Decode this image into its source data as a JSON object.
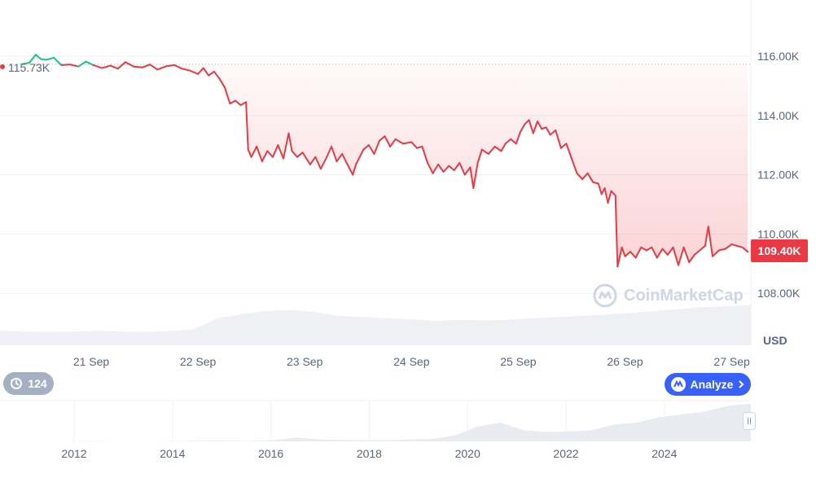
{
  "chart_data": {
    "type": "line",
    "currency_label": "USD",
    "watermark": "CoinMarketCap",
    "start_price_label": "115.73K",
    "current_price_label": "109.40K",
    "reference_value": 115730,
    "ylim": [
      107000,
      117500
    ],
    "y_ticks": [
      {
        "value": 108000,
        "label": "108.00K"
      },
      {
        "value": 110000,
        "label": "110.00K"
      },
      {
        "value": 112000,
        "label": "112.00K"
      },
      {
        "value": 114000,
        "label": "114.00K"
      },
      {
        "value": 116000,
        "label": "116.00K"
      }
    ],
    "x_ticks": [
      "21 Sep",
      "22 Sep",
      "23 Sep",
      "24 Sep",
      "25 Sep",
      "26 Sep",
      "27 Sep"
    ],
    "x_range_days": [
      20.35,
      27.15
    ],
    "series": [
      {
        "points": [
          [
            20.35,
            115.73
          ],
          [
            20.42,
            115.78
          ],
          [
            20.48,
            116.05
          ],
          [
            20.53,
            115.9
          ],
          [
            20.58,
            115.88
          ],
          [
            20.65,
            115.95
          ],
          [
            20.72,
            115.7
          ],
          [
            20.8,
            115.72
          ],
          [
            20.88,
            115.65
          ],
          [
            20.95,
            115.82
          ],
          [
            21.02,
            115.7
          ],
          [
            21.1,
            115.6
          ],
          [
            21.18,
            115.68
          ],
          [
            21.25,
            115.58
          ],
          [
            21.32,
            115.8
          ],
          [
            21.4,
            115.65
          ],
          [
            21.48,
            115.62
          ],
          [
            21.55,
            115.72
          ],
          [
            21.62,
            115.55
          ],
          [
            21.7,
            115.66
          ],
          [
            21.78,
            115.7
          ],
          [
            21.85,
            115.58
          ],
          [
            21.92,
            115.52
          ],
          [
            22.0,
            115.4
          ],
          [
            22.05,
            115.6
          ],
          [
            22.1,
            115.35
          ],
          [
            22.15,
            115.48
          ],
          [
            22.2,
            115.25
          ],
          [
            22.25,
            114.95
          ],
          [
            22.3,
            114.4
          ],
          [
            22.35,
            114.5
          ],
          [
            22.4,
            114.35
          ],
          [
            22.45,
            114.45
          ],
          [
            22.47,
            112.85
          ],
          [
            22.5,
            112.6
          ],
          [
            22.55,
            112.95
          ],
          [
            22.6,
            112.45
          ],
          [
            22.65,
            112.8
          ],
          [
            22.7,
            112.6
          ],
          [
            22.75,
            113.0
          ],
          [
            22.8,
            112.55
          ],
          [
            22.85,
            113.4
          ],
          [
            22.88,
            112.8
          ],
          [
            22.93,
            112.6
          ],
          [
            22.98,
            112.75
          ],
          [
            23.05,
            112.35
          ],
          [
            23.1,
            112.6
          ],
          [
            23.15,
            112.2
          ],
          [
            23.2,
            112.55
          ],
          [
            23.25,
            112.95
          ],
          [
            23.3,
            112.45
          ],
          [
            23.35,
            112.7
          ],
          [
            23.4,
            112.35
          ],
          [
            23.45,
            112.0
          ],
          [
            23.48,
            112.35
          ],
          [
            23.55,
            112.85
          ],
          [
            23.6,
            113.0
          ],
          [
            23.65,
            112.7
          ],
          [
            23.7,
            113.15
          ],
          [
            23.75,
            113.3
          ],
          [
            23.8,
            112.95
          ],
          [
            23.85,
            113.2
          ],
          [
            23.92,
            113.05
          ],
          [
            24.0,
            113.1
          ],
          [
            24.05,
            112.9
          ],
          [
            24.1,
            112.95
          ],
          [
            24.15,
            112.4
          ],
          [
            24.2,
            112.05
          ],
          [
            24.25,
            112.35
          ],
          [
            24.3,
            112.1
          ],
          [
            24.35,
            112.3
          ],
          [
            24.4,
            112.15
          ],
          [
            24.45,
            112.4
          ],
          [
            24.5,
            112.0
          ],
          [
            24.55,
            112.25
          ],
          [
            24.58,
            111.55
          ],
          [
            24.62,
            112.4
          ],
          [
            24.66,
            112.85
          ],
          [
            24.72,
            112.7
          ],
          [
            24.78,
            112.95
          ],
          [
            24.84,
            112.8
          ],
          [
            24.88,
            113.05
          ],
          [
            24.93,
            113.2
          ],
          [
            24.98,
            113.05
          ],
          [
            25.02,
            113.45
          ],
          [
            25.06,
            113.7
          ],
          [
            25.1,
            113.85
          ],
          [
            25.14,
            113.4
          ],
          [
            25.18,
            113.8
          ],
          [
            25.22,
            113.55
          ],
          [
            25.26,
            113.6
          ],
          [
            25.3,
            113.35
          ],
          [
            25.35,
            113.5
          ],
          [
            25.4,
            112.9
          ],
          [
            25.45,
            113.05
          ],
          [
            25.5,
            112.55
          ],
          [
            25.55,
            112.05
          ],
          [
            25.6,
            111.85
          ],
          [
            25.65,
            112.05
          ],
          [
            25.7,
            111.75
          ],
          [
            25.75,
            111.7
          ],
          [
            25.78,
            111.35
          ],
          [
            25.81,
            111.55
          ],
          [
            25.84,
            111.05
          ],
          [
            25.87,
            111.45
          ],
          [
            25.91,
            111.3
          ],
          [
            25.93,
            108.9
          ],
          [
            25.97,
            109.55
          ],
          [
            26.0,
            109.25
          ],
          [
            26.05,
            109.4
          ],
          [
            26.1,
            109.2
          ],
          [
            26.15,
            109.55
          ],
          [
            26.2,
            109.45
          ],
          [
            26.25,
            109.55
          ],
          [
            26.3,
            109.2
          ],
          [
            26.35,
            109.5
          ],
          [
            26.4,
            109.3
          ],
          [
            26.45,
            109.55
          ],
          [
            26.5,
            108.95
          ],
          [
            26.55,
            109.55
          ],
          [
            26.6,
            109.05
          ],
          [
            26.65,
            109.3
          ],
          [
            26.7,
            109.45
          ],
          [
            26.75,
            109.6
          ],
          [
            26.78,
            110.25
          ],
          [
            26.82,
            109.25
          ],
          [
            26.88,
            109.45
          ],
          [
            26.94,
            109.5
          ],
          [
            27.0,
            109.65
          ],
          [
            27.05,
            109.6
          ],
          [
            27.1,
            109.55
          ],
          [
            27.15,
            109.4
          ]
        ]
      }
    ],
    "volume": [
      0.3,
      0.28,
      0.27,
      0.28,
      0.3,
      0.28,
      0.27,
      0.29,
      0.33,
      0.55,
      0.64,
      0.7,
      0.72,
      0.68,
      0.6,
      0.58,
      0.55,
      0.53,
      0.5,
      0.52,
      0.51,
      0.52,
      0.55,
      0.58,
      0.6,
      0.63,
      0.66,
      0.7,
      0.74,
      0.78,
      0.8,
      0.82
    ],
    "navigator": {
      "x_ticks": [
        "2012",
        "2014",
        "2016",
        "2018",
        "2020",
        "2022",
        "2024"
      ],
      "history": [
        0.0,
        0.0,
        0.0,
        0.0,
        0.01,
        0.0,
        0.0,
        0.0,
        0.01,
        0.02,
        0.02,
        0.01,
        0.03,
        0.1,
        0.05,
        0.04,
        0.03,
        0.03,
        0.05,
        0.06,
        0.16,
        0.4,
        0.5,
        0.3,
        0.25,
        0.26,
        0.3,
        0.45,
        0.5,
        0.65,
        0.72,
        0.8,
        0.95,
        1.0
      ]
    }
  },
  "controls": {
    "history_count": "124",
    "analyze_label": "Analyze"
  },
  "colors": {
    "up": "#16c784",
    "down": "#ea3943",
    "grid": "#eff2f5",
    "accent": "#3861fb"
  },
  "icons": [
    "history-icon",
    "analyze-icon",
    "chevron-right-icon",
    "coinmarketcap-logo-icon"
  ]
}
